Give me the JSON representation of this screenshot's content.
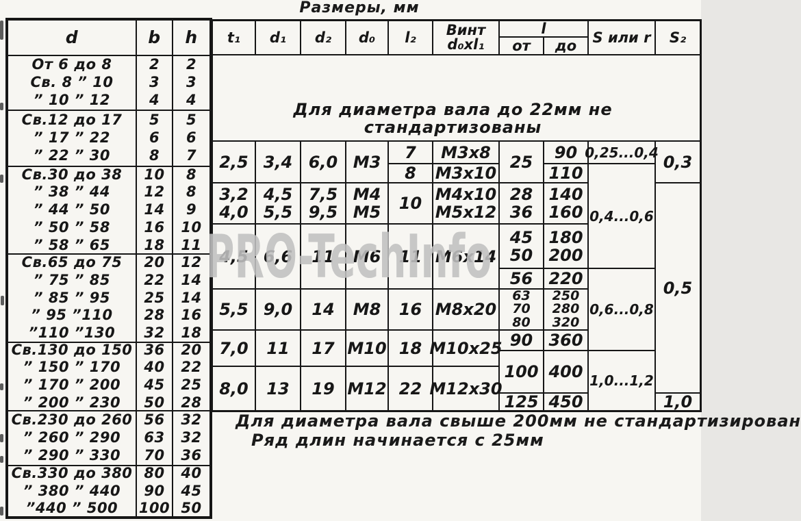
{
  "title": "Размеры, мм",
  "watermark": "PRO-TechInfo",
  "left_table": {
    "header": {
      "d": "d",
      "b": "b",
      "h": "h"
    },
    "groups": [
      {
        "rows": [
          [
            "От 6 до 8",
            "2",
            "2"
          ],
          [
            "Св. 8 ” 10",
            "3",
            "3"
          ],
          [
            "” 10 ” 12",
            "4",
            "4"
          ]
        ]
      },
      {
        "rows": [
          [
            "Св.12 до 17",
            "5",
            "5"
          ],
          [
            "” 17 ” 22",
            "6",
            "6"
          ],
          [
            "” 22 ” 30",
            "8",
            "7"
          ]
        ]
      },
      {
        "rows": [
          [
            "Св.30 до 38",
            "10",
            "8"
          ],
          [
            "” 38 ” 44",
            "12",
            "8"
          ],
          [
            "” 44 ” 50",
            "14",
            "9"
          ],
          [
            "” 50 ” 58",
            "16",
            "10"
          ],
          [
            "” 58 ” 65",
            "18",
            "11"
          ]
        ]
      },
      {
        "rows": [
          [
            "Св.65 до 75",
            "20",
            "12"
          ],
          [
            "” 75 ” 85",
            "22",
            "14"
          ],
          [
            "” 85 ” 95",
            "25",
            "14"
          ],
          [
            "” 95 ”110",
            "28",
            "16"
          ],
          [
            "”110 ”130",
            "32",
            "18"
          ]
        ]
      },
      {
        "rows": [
          [
            "Св.130 до 150",
            "36",
            "20"
          ],
          [
            "” 150 ” 170",
            "40",
            "22"
          ],
          [
            "” 170 ” 200",
            "45",
            "25"
          ],
          [
            "” 200 ” 230",
            "50",
            "28"
          ]
        ]
      },
      {
        "rows": [
          [
            "Св.230 до 260",
            "56",
            "32"
          ],
          [
            "” 260 ” 290",
            "63",
            "32"
          ],
          [
            "” 290 ” 330",
            "70",
            "36"
          ]
        ]
      },
      {
        "rows": [
          [
            "Св.330 до 380",
            "80",
            "40"
          ],
          [
            "” 380 ” 440",
            "90",
            "45"
          ],
          [
            "”440 ” 500",
            "100",
            "50"
          ]
        ]
      }
    ]
  },
  "right_table": {
    "header": {
      "t1": "t₁",
      "d1": "d₁",
      "d2": "d₂",
      "d0": "d₀",
      "l2": "l₂",
      "vint": "Винт\nd₀хl₁",
      "l": "l",
      "ot": "от",
      "do": "до",
      "s_or_r": "S или r",
      "s2": "S₂"
    },
    "note": "Для диаметра вала до 22мм не стандартизованы",
    "t1": [
      "2,5",
      "3,2\n4,0",
      "4,5",
      "5,5",
      "7,0",
      "8,0"
    ],
    "d1": [
      "3,4",
      "4,5\n5,5",
      "6,6",
      "9,0",
      "11",
      "13"
    ],
    "d2": [
      "6,0",
      "7,5\n9,5",
      "11",
      "14",
      "17",
      "19"
    ],
    "d0": [
      "М3",
      "М4\nМ5",
      "М6",
      "М8",
      "М10",
      "М12"
    ],
    "l2": [
      "7",
      "8",
      "10",
      "11",
      "16",
      "18",
      "22"
    ],
    "vint": [
      "М3х8",
      "М3х10",
      "М4х10\nМ5х12",
      "М6х14",
      "М8х20",
      "М10х25",
      "М12х30"
    ],
    "ot": [
      "25",
      "28\n36",
      "45\n50",
      "56",
      "63\n70\n80",
      "90",
      "100",
      "125"
    ],
    "do": [
      "90",
      "110",
      "140\n160",
      "180\n200",
      "220",
      "250\n280\n320",
      "360",
      "400",
      "450"
    ],
    "s_or_r": [
      "0,25...0,4",
      "0,4...0,6",
      "0,6...0,8",
      "1,0...1,2"
    ],
    "s2": [
      "0,3",
      "0,5",
      "1,0"
    ]
  },
  "footnotes": [
    "Для диаметра вала свыше 200мм не стандартизирован",
    "Ряд длин начинается с 25мм"
  ]
}
